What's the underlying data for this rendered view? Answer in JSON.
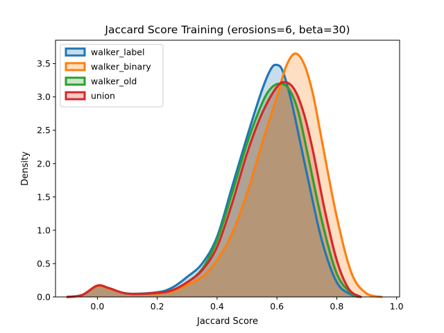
{
  "chart_data": {
    "type": "area",
    "title": "Jaccard Score Training (erosions=6, beta=30)",
    "xlabel": "Jaccard Score",
    "ylabel": "Density",
    "xlim": [
      -0.14,
      1.01
    ],
    "ylim": [
      0,
      3.85
    ],
    "xticks": [
      "0.0",
      "0.2",
      "0.4",
      "0.6",
      "0.8",
      "1.0"
    ],
    "yticks": [
      "0.0",
      "0.5",
      "1.0",
      "1.5",
      "2.0",
      "2.5",
      "3.0",
      "3.5"
    ],
    "legend_position": "top-left",
    "grid": false,
    "series": [
      {
        "name": "walker_label",
        "color": "#1f77b4",
        "points": [
          [
            -0.1,
            0
          ],
          [
            -0.05,
            0.03
          ],
          [
            0,
            0.17
          ],
          [
            0.04,
            0.13
          ],
          [
            0.1,
            0.05
          ],
          [
            0.2,
            0.07
          ],
          [
            0.25,
            0.14
          ],
          [
            0.3,
            0.3
          ],
          [
            0.35,
            0.5
          ],
          [
            0.4,
            0.9
          ],
          [
            0.45,
            1.65
          ],
          [
            0.5,
            2.4
          ],
          [
            0.55,
            3.1
          ],
          [
            0.58,
            3.42
          ],
          [
            0.6,
            3.48
          ],
          [
            0.62,
            3.38
          ],
          [
            0.65,
            2.9
          ],
          [
            0.7,
            1.85
          ],
          [
            0.75,
            0.85
          ],
          [
            0.8,
            0.22
          ],
          [
            0.85,
            0.03
          ],
          [
            0.88,
            0
          ]
        ]
      },
      {
        "name": "walker_binary",
        "color": "#ff7f0e",
        "points": [
          [
            -0.1,
            0
          ],
          [
            -0.05,
            0.03
          ],
          [
            0,
            0.16
          ],
          [
            0.04,
            0.12
          ],
          [
            0.1,
            0.05
          ],
          [
            0.2,
            0.05
          ],
          [
            0.25,
            0.08
          ],
          [
            0.3,
            0.18
          ],
          [
            0.35,
            0.3
          ],
          [
            0.4,
            0.55
          ],
          [
            0.45,
            0.95
          ],
          [
            0.5,
            1.55
          ],
          [
            0.55,
            2.3
          ],
          [
            0.6,
            3.0
          ],
          [
            0.63,
            3.45
          ],
          [
            0.66,
            3.65
          ],
          [
            0.69,
            3.5
          ],
          [
            0.72,
            3.05
          ],
          [
            0.75,
            2.35
          ],
          [
            0.8,
            1.2
          ],
          [
            0.85,
            0.35
          ],
          [
            0.9,
            0.05
          ],
          [
            0.95,
            0
          ]
        ]
      },
      {
        "name": "walker_old",
        "color": "#2ca02c",
        "points": [
          [
            -0.1,
            0
          ],
          [
            -0.05,
            0.03
          ],
          [
            0,
            0.17
          ],
          [
            0.04,
            0.13
          ],
          [
            0.1,
            0.05
          ],
          [
            0.2,
            0.06
          ],
          [
            0.25,
            0.1
          ],
          [
            0.3,
            0.22
          ],
          [
            0.35,
            0.42
          ],
          [
            0.4,
            0.85
          ],
          [
            0.45,
            1.55
          ],
          [
            0.5,
            2.3
          ],
          [
            0.55,
            2.9
          ],
          [
            0.58,
            3.13
          ],
          [
            0.61,
            3.2
          ],
          [
            0.64,
            3.12
          ],
          [
            0.67,
            2.8
          ],
          [
            0.7,
            2.2
          ],
          [
            0.75,
            1.15
          ],
          [
            0.8,
            0.35
          ],
          [
            0.85,
            0.05
          ],
          [
            0.88,
            0
          ]
        ]
      },
      {
        "name": "union",
        "color": "#d62728",
        "points": [
          [
            -0.1,
            0
          ],
          [
            -0.05,
            0.03
          ],
          [
            0,
            0.17
          ],
          [
            0.04,
            0.13
          ],
          [
            0.1,
            0.05
          ],
          [
            0.2,
            0.06
          ],
          [
            0.25,
            0.1
          ],
          [
            0.3,
            0.22
          ],
          [
            0.35,
            0.4
          ],
          [
            0.4,
            0.75
          ],
          [
            0.45,
            1.4
          ],
          [
            0.5,
            2.15
          ],
          [
            0.55,
            2.75
          ],
          [
            0.6,
            3.15
          ],
          [
            0.63,
            3.22
          ],
          [
            0.66,
            3.1
          ],
          [
            0.69,
            2.75
          ],
          [
            0.72,
            2.2
          ],
          [
            0.76,
            1.3
          ],
          [
            0.8,
            0.55
          ],
          [
            0.84,
            0.12
          ],
          [
            0.88,
            0
          ]
        ]
      }
    ]
  }
}
